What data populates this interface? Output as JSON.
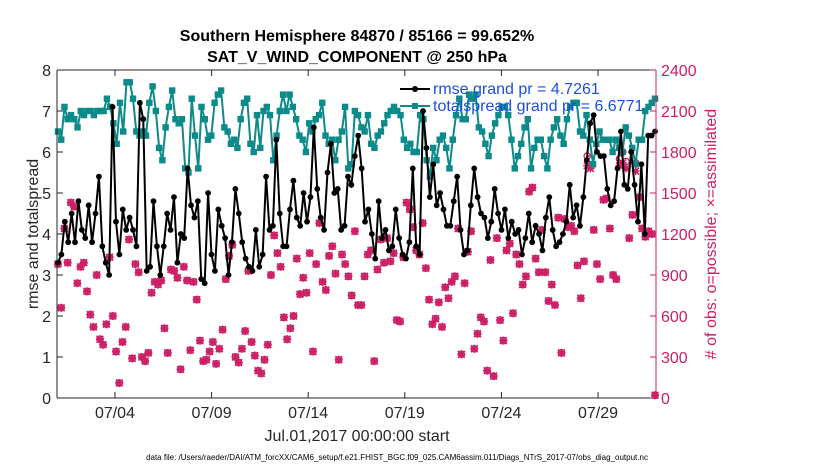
{
  "chart_data": {
    "type": "line",
    "title": "Southern Hemisphere 84870 / 85166 = 99.652%",
    "subtitle": "SAT_V_WIND_COMPONENT @ 250 hPa",
    "xlabel": "Jul.01,2017 00:00:00 start",
    "ylabel": "rmse and totalspread",
    "ylabel_right": "# of obs: o=possible; ×=assimilated",
    "footnote": "data file: /Users/raeder/DAI/ATM_forcXX/CAM6_setup/f.e21.FHIST_BGC.f09_025.CAM6assim.011/Diags_NTrS_2017-07/obs_diag_output.nc",
    "x_ticks": [
      {
        "x": 4,
        "label": "07/04"
      },
      {
        "x": 9,
        "label": "07/09"
      },
      {
        "x": 14,
        "label": "07/14"
      },
      {
        "x": 19,
        "label": "07/19"
      },
      {
        "x": 24,
        "label": "07/24"
      },
      {
        "x": 29,
        "label": "07/29"
      }
    ],
    "xlim": [
      1,
      32
    ],
    "ylim": [
      0,
      8
    ],
    "ylim_right": [
      0,
      2400
    ],
    "y_ticks": [
      "0",
      "1",
      "2",
      "3",
      "4",
      "5",
      "6",
      "7",
      "8"
    ],
    "y_ticks_right": [
      "0",
      "300",
      "600",
      "900",
      "1200",
      "1500",
      "1800",
      "2100",
      "2400"
    ],
    "legend_position": "top-right",
    "colors": {
      "rmse": "#000000",
      "spread": "#0d8a8a",
      "obs": "#cc1f66"
    },
    "series": [
      {
        "name": "rmse grand pr = 4.7261",
        "axis": "left",
        "marker": "dot",
        "values": [
          3.3,
          3.5,
          4.3,
          3.8,
          4.5,
          3.8,
          4.8,
          4.1,
          3.9,
          4.7,
          3.8,
          4.5,
          5.4,
          3.7,
          3.3,
          3.0,
          7.1,
          4.3,
          3.5,
          4.6,
          4.1,
          4.4,
          4.1,
          3.7,
          7.2,
          6.8,
          3.1,
          3.2,
          4.8,
          3.7,
          3.0,
          3.7,
          4.5,
          4.1,
          4.9,
          3.3,
          4.0,
          3.9,
          5.6,
          4.7,
          4.4,
          4.8,
          2.9,
          2.8,
          5.0,
          3.5,
          3.1,
          4.6,
          4.2,
          3.9,
          3.0,
          3.8,
          5.1,
          4.5,
          3.8,
          3.4,
          3.2,
          3.1,
          4.1,
          3.2,
          3.5,
          5.4,
          4.1,
          4.2,
          6.3,
          4.5,
          3.7,
          3.7,
          4.6,
          5.3,
          4.4,
          4.2,
          5.0,
          4.3,
          4.9,
          6.6,
          5.1,
          4.4,
          4.1,
          5.5,
          6.2,
          5.0,
          5.1,
          4.1,
          4.2,
          5.4,
          5.2,
          5.9,
          6.4,
          5.6,
          4.3,
          4.6,
          4.0,
          3.4,
          4.8,
          3.9,
          4.1,
          3.6,
          3.7,
          4.6,
          3.9,
          3.5,
          3.4,
          3.8,
          5.6,
          3.7,
          3.5,
          7.0,
          6.1,
          4.9,
          5.7,
          4.7,
          5.0,
          4.6,
          4.2,
          4.2,
          4.8,
          5.4,
          4.1,
          3.5,
          3.6,
          4.7,
          5.6,
          4.9,
          4.5,
          4.4,
          3.9,
          4.3,
          5.1,
          4.5,
          4.1,
          4.6,
          3.9,
          4.3,
          4.0,
          4.1,
          3.5,
          3.9,
          4.5,
          3.8,
          4.2,
          4.0,
          3.6,
          4.4,
          4.9,
          4.1,
          3.7,
          3.8,
          4.0,
          4.3,
          5.2,
          4.4,
          4.7,
          4.2,
          4.9,
          5.8,
          6.7,
          6.9,
          6.0,
          5.9,
          5.9,
          5.1,
          4.7,
          4.8,
          5.6,
          6.5,
          5.2,
          5.1,
          6.0,
          5.2,
          4.3,
          5.7,
          4.0,
          6.4,
          6.4,
          6.5
        ]
      },
      {
        "name": "totalspread grand pr = 6.6771",
        "axis": "left",
        "marker": "square",
        "values": [
          6.5,
          6.3,
          7.1,
          6.8,
          6.9,
          6.8,
          6.6,
          7.0,
          6.9,
          7.0,
          7.0,
          6.9,
          7.0,
          7.0,
          7.0,
          7.3,
          7.1,
          6.7,
          6.2,
          7.2,
          6.5,
          7.7,
          7.7,
          7.3,
          6.5,
          6.4,
          6.5,
          6.4,
          7.2,
          7.6,
          7.0,
          6.1,
          5.8,
          6.6,
          7.1,
          7.5,
          6.8,
          6.7,
          6.8,
          5.6,
          5.5,
          7.3,
          6.4,
          5.6,
          7.1,
          6.8,
          6.3,
          6.4,
          7.2,
          7.4,
          7.5,
          6.6,
          6.5,
          6.2,
          6.3,
          6.1,
          6.8,
          7.2,
          7.3,
          6.2,
          6.0,
          6.9,
          6.1,
          7.0,
          7.1,
          6.9,
          5.8,
          6.4,
          7.0,
          7.4,
          7.0,
          7.4,
          7.1,
          6.8,
          6.4,
          6.3,
          6.0,
          6.7,
          6.5,
          6.8,
          6.9,
          7.2,
          6.4,
          6.2,
          6.3,
          5.8,
          6.3,
          6.5,
          7.1,
          5.6,
          5.7,
          7.0,
          6.9,
          6.6,
          6.5,
          6.9,
          6.2,
          6.1,
          6.4,
          6.5,
          6.7,
          6.9,
          7.0,
          7.1,
          7.0,
          6.9,
          6.3,
          6.1,
          6.2,
          6.0,
          6.0,
          6.9,
          6.8,
          5.8,
          5.4,
          6.1,
          5.8,
          6.3,
          6.4,
          6.1,
          5.6,
          6.3,
          6.9,
          7.3,
          6.8,
          6.8,
          7.4,
          7.3,
          7.4,
          6.6,
          6.5,
          6.2,
          5.9,
          6.4,
          6.7,
          6.9,
          7.1,
          7.1,
          6.9,
          6.3,
          5.6,
          5.9,
          6.2,
          6.6,
          6.8,
          5.6,
          6.1,
          6.3,
          6.3,
          5.9,
          5.6,
          6.3,
          6.6,
          6.8,
          6.4,
          6.2,
          6.8,
          7.1,
          7.2,
          7.2,
          6.5,
          6.4,
          6.9,
          6.3,
          5.7,
          6.2,
          6.5,
          6.3,
          6.3,
          6.3,
          6.0,
          6.3,
          6.1,
          6.0,
          6.6,
          6.4,
          6.1,
          5.7,
          6.3,
          6.3,
          7.0,
          7.1,
          7.2,
          7.3
        ]
      },
      {
        "name": "obs possible",
        "axis": "right",
        "marker": "o",
        "values": [
          980,
          660,
          1240,
          990,
          1430,
          1400,
          840,
          960,
          990,
          780,
          610,
          520,
          900,
          430,
          390,
          540,
          1030,
          600,
          340,
          110,
          410,
          520,
          1160,
          290,
          980,
          920,
          300,
          270,
          330,
          770,
          850,
          830,
          860,
          510,
          330,
          940,
          930,
          880,
          210,
          960,
          860,
          350,
          850,
          720,
          420,
          270,
          280,
          340,
          410,
          250,
          360,
          500,
          870,
          1040,
          1120,
          300,
          260,
          360,
          490,
          930,
          410,
          310,
          200,
          180,
          280,
          390,
          900,
          1190,
          1060,
          960,
          590,
          430,
          510,
          600,
          1020,
          760,
          880,
          770,
          1060,
          340,
          980,
          1280,
          850,
          790,
          1040,
          1110,
          910,
          280,
          1050,
          980,
          890,
          750,
          1220,
          680,
          680,
          890,
          1050,
          1080,
          270,
          940,
          1160,
          990,
          1170,
          1000,
          1060,
          570,
          560,
          1030,
          1430,
          1380,
          1250,
          1080,
          1050,
          1280,
          950,
          720,
          540,
          580,
          700,
          520,
          810,
          730,
          850,
          890,
          1240,
          320,
          840,
          1070,
          1220,
          360,
          470,
          590,
          560,
          200,
          1010,
          160,
          1170,
          570,
          420,
          1080,
          1130,
          620,
          1050,
          980,
          830,
          890,
          1510,
          1540,
          1020,
          920,
          1230,
          920,
          710,
          830,
          680,
          1320,
          330,
          1310,
          1250,
          1260,
          1220,
          970,
          730,
          1000,
          1770,
          1750,
          1230,
          980,
          870,
          1450,
          1460,
          1240,
          900,
          870,
          1750,
          1800,
          1730,
          1170,
          1340,
          1720,
          1470,
          1240,
          1180,
          1220,
          1200,
          20
        ]
      },
      {
        "name": "obs assimilated",
        "axis": "right",
        "marker": "x",
        "values": [
          980,
          660,
          1240,
          990,
          1430,
          1400,
          840,
          960,
          990,
          780,
          610,
          520,
          900,
          430,
          390,
          540,
          1030,
          600,
          340,
          110,
          410,
          520,
          1160,
          290,
          980,
          920,
          300,
          270,
          330,
          770,
          850,
          830,
          860,
          510,
          330,
          940,
          930,
          880,
          210,
          960,
          860,
          350,
          850,
          720,
          420,
          270,
          280,
          340,
          410,
          250,
          360,
          500,
          870,
          1040,
          1120,
          300,
          260,
          360,
          490,
          930,
          410,
          310,
          200,
          180,
          280,
          390,
          900,
          1190,
          1060,
          960,
          590,
          430,
          510,
          600,
          1020,
          760,
          880,
          770,
          1060,
          340,
          980,
          1280,
          850,
          790,
          1040,
          1110,
          910,
          280,
          1050,
          980,
          890,
          750,
          1220,
          680,
          680,
          890,
          1050,
          1080,
          270,
          940,
          1160,
          990,
          1170,
          1000,
          1060,
          570,
          560,
          1030,
          1430,
          1380,
          1250,
          1080,
          1050,
          1280,
          950,
          720,
          540,
          580,
          700,
          520,
          810,
          730,
          850,
          890,
          1240,
          320,
          840,
          1070,
          1220,
          360,
          470,
          590,
          560,
          200,
          1010,
          160,
          1170,
          570,
          420,
          1080,
          1130,
          620,
          1050,
          980,
          830,
          890,
          1510,
          1540,
          1020,
          920,
          1230,
          920,
          710,
          830,
          680,
          1320,
          330,
          1310,
          1250,
          1260,
          1220,
          970,
          730,
          1000,
          1700,
          1680,
          1230,
          980,
          870,
          1450,
          1460,
          1240,
          900,
          870,
          1700,
          1720,
          1680,
          1170,
          1340,
          1660,
          1470,
          1240,
          1180,
          1220,
          1200,
          20
        ]
      }
    ]
  }
}
